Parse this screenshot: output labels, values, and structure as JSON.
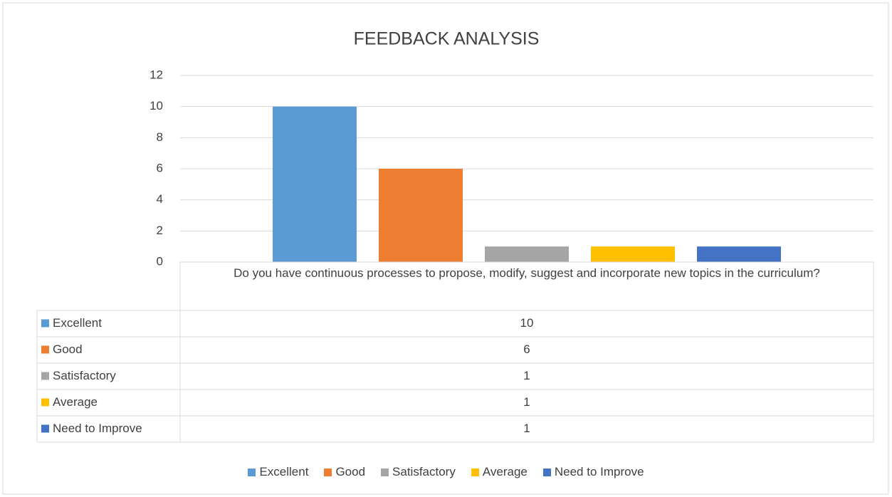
{
  "chart_data": {
    "type": "bar",
    "title": "FEEDBACK ANALYSIS",
    "categories": [
      "Do you have continuous processes to propose, modify, suggest and incorporate new topics in the curriculum?"
    ],
    "series": [
      {
        "name": "Excellent",
        "color": "#5b9bd5",
        "values": [
          10
        ]
      },
      {
        "name": "Good",
        "color": "#ed7d31",
        "values": [
          6
        ]
      },
      {
        "name": "Satisfactory",
        "color": "#a5a5a5",
        "values": [
          1
        ]
      },
      {
        "name": "Average",
        "color": "#ffc000",
        "values": [
          1
        ]
      },
      {
        "name": "Need to Improve",
        "color": "#4472c4",
        "values": [
          1
        ]
      }
    ],
    "ylim": [
      0,
      12
    ],
    "yticks": [
      0,
      2,
      4,
      6,
      8,
      10,
      12
    ],
    "grid": true,
    "data_table": true,
    "legend": "bottom"
  }
}
